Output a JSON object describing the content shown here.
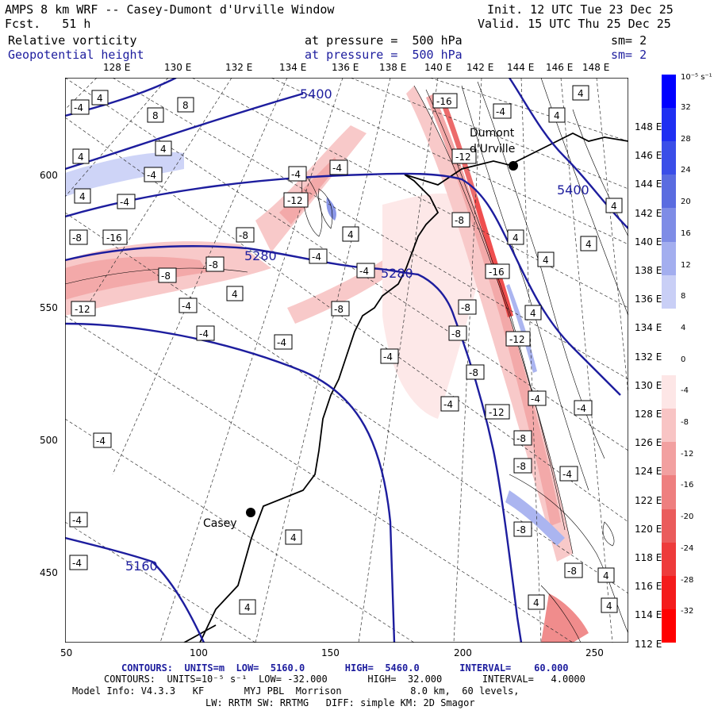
{
  "header": {
    "title": "AMPS 8 km WRF -- Casey-Dumont d'Urville Window",
    "init": "Init. 12 UTC Tue 23 Dec 25",
    "fcst": "Fcst.   51 h",
    "valid": "Valid. 15 UTC Thu 25 Dec 25",
    "field1": "Relative vorticity",
    "field1_level": "at pressure =  500 hPa",
    "field1_sm": "sm= 2",
    "field2": "Geopotential height",
    "field2_level": "at pressure =  500 hPa",
    "field2_sm": "sm= 2"
  },
  "axes": {
    "x_ticks": [
      "50",
      "100",
      "150",
      "200",
      "250"
    ],
    "y_ticks": [
      "600",
      "550",
      "500",
      "450"
    ],
    "lon_top": [
      "128 E",
      "130 E",
      "132 E",
      "134 E",
      "136 E",
      "138 E",
      "140 E",
      "142 E",
      "144 E",
      "146 E",
      "148 E"
    ],
    "lat_right": [
      "148 E",
      "146 E",
      "144 E",
      "142 E",
      "140 E",
      "138 E",
      "136 E",
      "134 E",
      "132 E",
      "130 E",
      "128 E",
      "126 E",
      "124 E",
      "122 E",
      "120 E",
      "118 E",
      "116 E",
      "114 E",
      "112 E"
    ]
  },
  "colorbar": {
    "unit": "10⁻⁵ s⁻¹",
    "labels": [
      "32",
      "28",
      "24",
      "20",
      "16",
      "12",
      "8",
      "4",
      "0",
      "-4",
      "-8",
      "-12",
      "-16",
      "-20",
      "-24",
      "-28",
      "-32"
    ],
    "colors": [
      "#0000ff",
      "#1f2ff2",
      "#3a4ee8",
      "#5a6ce0",
      "#7e8ce6",
      "#a3aeef",
      "#c9cff6",
      "#ffffff",
      "#ffffff",
      "#fde6e6",
      "#f8c4c4",
      "#f2a0a0",
      "#ee7f7f",
      "#ea5c5c",
      "#ee3b3b",
      "#f41c1c",
      "#ff0000"
    ]
  },
  "stations": {
    "casey": "Casey",
    "dumont_line1": "Dumont",
    "dumont_line2": "d'Urville"
  },
  "height_labels": [
    "5400",
    "5280",
    "5280",
    "5400",
    "5160"
  ],
  "vort_labels": [
    "-4",
    "-8",
    "-12",
    "-16",
    "4",
    "8"
  ],
  "footer": {
    "line1": "CONTOURS:  UNITS=m  LOW=  5160.0       HIGH=  5460.0       INTERVAL=    60.000",
    "line2": "CONTOURS:  UNITS=10⁻⁵ s⁻¹  LOW= -32.000       HIGH=  32.000       INTERVAL=   4.0000",
    "line3": "Model Info: V4.3.3   KF       MYJ PBL  Morrison            8.0 km,  60 levels,",
    "line4": "LW: RRTM SW: RRTMG   DIFF: simple KM: 2D Smagor"
  },
  "chart_data": {
    "type": "heatmap",
    "title": "Relative vorticity / Geopotential height at 500 hPa",
    "contours_height": {
      "units": "m",
      "low": 5160.0,
      "high": 5460.0,
      "interval": 60.0
    },
    "contours_vorticity": {
      "units": "10^-5 s^-1",
      "low": -32.0,
      "high": 32.0,
      "interval": 4.0
    },
    "xlim": [
      50,
      262
    ],
    "ylim": [
      420,
      640
    ]
  }
}
